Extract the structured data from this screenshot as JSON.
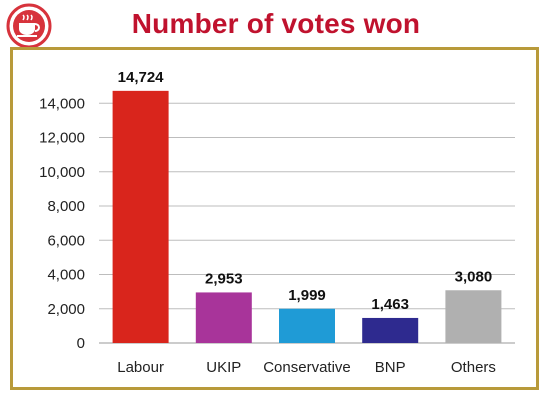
{
  "title": "Number of votes won",
  "logo": {
    "icon": "teacup-logo-icon",
    "color": "#d7333c"
  },
  "frame_color": "#b89a3a",
  "chart_data": {
    "type": "bar",
    "title": "Number of votes won",
    "xlabel": "",
    "ylabel": "",
    "categories": [
      "Labour",
      "UKIP",
      "Conservative",
      "BNP",
      "Others"
    ],
    "values": [
      14724,
      2953,
      1999,
      1463,
      3080
    ],
    "data_labels": [
      "14,724",
      "2,953",
      "1,999",
      "1,463",
      "3,080"
    ],
    "colors": [
      "#d9251c",
      "#a8349a",
      "#1f9bd6",
      "#2e2a8f",
      "#b0b0b0"
    ],
    "ylim": [
      0,
      16000
    ],
    "yticks": [
      0,
      2000,
      4000,
      6000,
      8000,
      10000,
      12000,
      14000
    ],
    "ytick_labels": [
      "0",
      "2,000",
      "4,000",
      "6,000",
      "8,000",
      "10,000",
      "12,000",
      "14,000"
    ],
    "grid": true,
    "legend": "none"
  }
}
